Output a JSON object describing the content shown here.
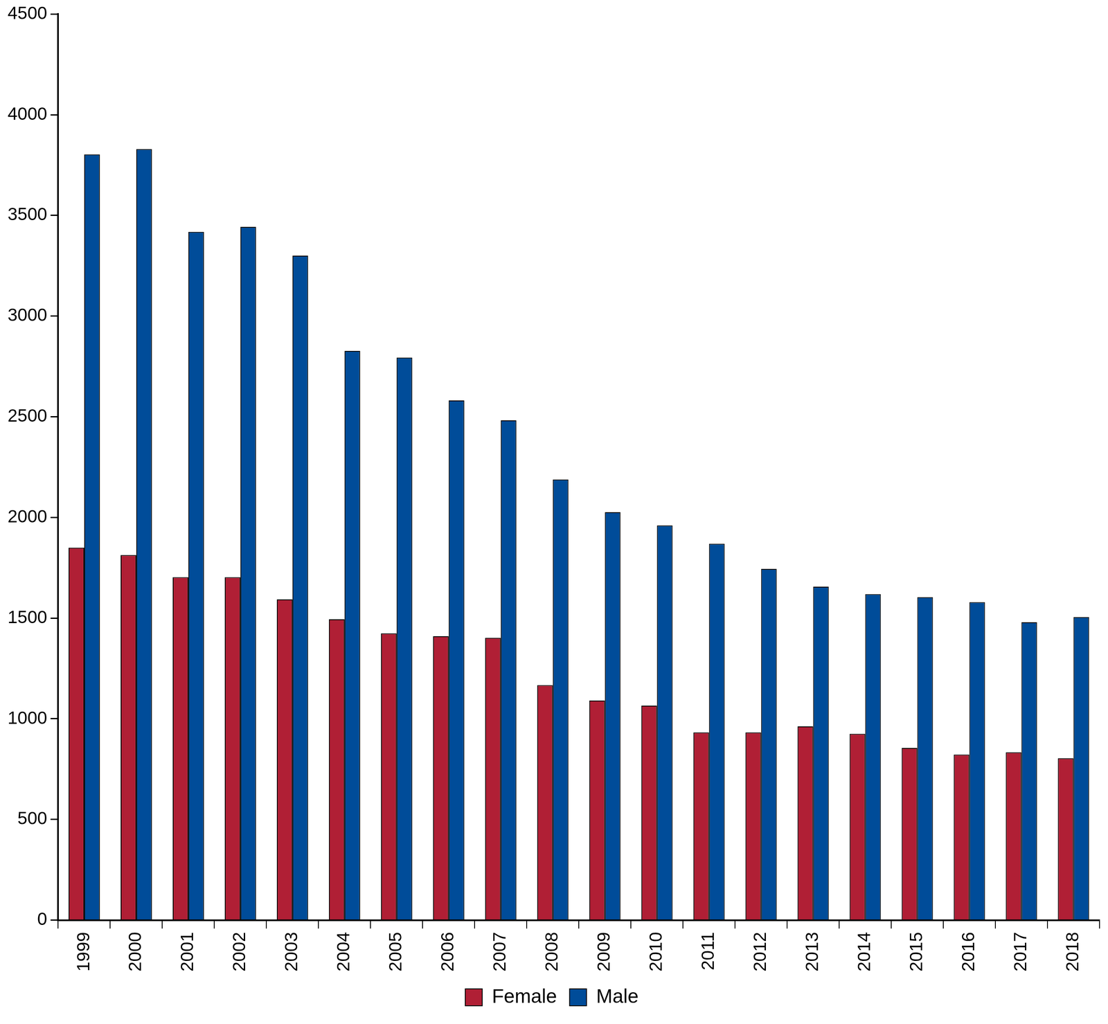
{
  "chart_data": {
    "type": "bar",
    "categories": [
      "1999",
      "2000",
      "2001",
      "2002",
      "2003",
      "2004",
      "2005",
      "2006",
      "2007",
      "2008",
      "2009",
      "2010",
      "2011",
      "2012",
      "2013",
      "2014",
      "2015",
      "2016",
      "2017",
      "2018"
    ],
    "series": [
      {
        "name": "Female",
        "color": "#b01f35",
        "values": [
          1850,
          1813,
          1703,
          1703,
          1593,
          1494,
          1424,
          1410,
          1402,
          1167,
          1090,
          1065,
          932,
          932,
          962,
          925,
          855,
          822,
          833,
          804
        ]
      },
      {
        "name": "Male",
        "color": "#004c99",
        "values": [
          3803,
          3829,
          3418,
          3443,
          3300,
          2827,
          2794,
          2581,
          2482,
          2188,
          2026,
          1960,
          1869,
          1744,
          1656,
          1619,
          1604,
          1579,
          1479,
          1505
        ]
      }
    ],
    "ylim": [
      0,
      4500
    ],
    "yticks": [
      0,
      500,
      1000,
      1500,
      2000,
      2500,
      3000,
      3500,
      4000,
      4500
    ],
    "grid": false,
    "legend": "bottom"
  }
}
